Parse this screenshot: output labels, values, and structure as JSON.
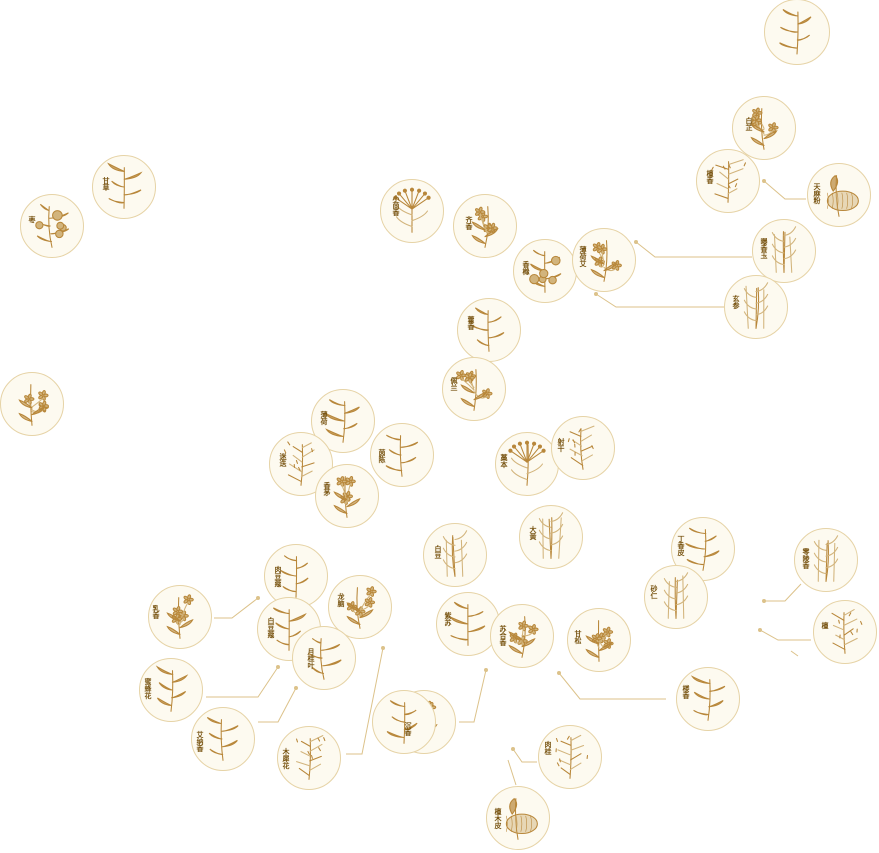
{
  "theme": {
    "line": "#dcc28a",
    "ink": "#b8873a",
    "ink_light": "#d2b47c",
    "fill": "#fdfaf0",
    "border": "#e6d3a6",
    "label": "#7a5614"
  },
  "herbs": [
    {
      "id": "h1",
      "label": "",
      "icon": "leafy-herb-icon"
    },
    {
      "id": "h2",
      "label": "白芷",
      "icon": "flowering-herb-icon"
    },
    {
      "id": "h3",
      "label": "檀香",
      "icon": "branch-herb-icon"
    },
    {
      "id": "h4",
      "label": "天麻粉",
      "icon": "root-tuber-icon"
    },
    {
      "id": "h5",
      "label": "甘草",
      "icon": "leafy-herb-icon"
    },
    {
      "id": "h6",
      "label": "枣",
      "icon": "fruit-branch-icon"
    },
    {
      "id": "h7",
      "label": "小茴香",
      "icon": "umbel-herb-icon"
    },
    {
      "id": "h8",
      "label": "齐香",
      "icon": "flowering-herb-icon"
    },
    {
      "id": "h9",
      "label": "香橼",
      "icon": "fruit-branch-icon"
    },
    {
      "id": "h10",
      "label": "薄荷艾",
      "icon": "flowering-herb-icon"
    },
    {
      "id": "h11",
      "label": "曝香玉",
      "icon": "stalk-herb-icon"
    },
    {
      "id": "h12",
      "label": "玄参",
      "icon": "stalk-herb-icon"
    },
    {
      "id": "h13",
      "label": "藿香",
      "icon": "leafy-herb-icon"
    },
    {
      "id": "h14",
      "label": "佩兰",
      "icon": "flowering-herb-icon"
    },
    {
      "id": "h15",
      "label": "",
      "icon": "flowering-herb-icon"
    },
    {
      "id": "h16",
      "label": "薄荷",
      "icon": "leafy-herb-icon"
    },
    {
      "id": "h17",
      "label": "茵陈",
      "icon": "leafy-herb-icon"
    },
    {
      "id": "h18",
      "label": "迷迭",
      "icon": "branch-herb-icon"
    },
    {
      "id": "h19",
      "label": "香茅",
      "icon": "flowering-herb-icon"
    },
    {
      "id": "h20",
      "label": "藁本",
      "icon": "umbel-herb-icon"
    },
    {
      "id": "h21",
      "label": "射干",
      "icon": "branch-herb-icon"
    },
    {
      "id": "h22",
      "label": "大黄",
      "icon": "stalk-herb-icon"
    },
    {
      "id": "h23",
      "label": "白豆",
      "icon": "stalk-herb-icon"
    },
    {
      "id": "h24",
      "label": "肉豆蔻",
      "icon": "leafy-herb-icon"
    },
    {
      "id": "h25",
      "label": "龙脑",
      "icon": "flowering-herb-icon"
    },
    {
      "id": "h26",
      "label": "白豆蔻",
      "icon": "leafy-herb-icon"
    },
    {
      "id": "h27",
      "label": "月桂叶",
      "icon": "leafy-herb-icon"
    },
    {
      "id": "h28",
      "label": "紫苏",
      "icon": "leafy-herb-icon"
    },
    {
      "id": "h29",
      "label": "苏合香",
      "icon": "flowering-herb-icon"
    },
    {
      "id": "h30",
      "label": "甘松",
      "icon": "flowering-herb-icon"
    },
    {
      "id": "h31",
      "label": "丁香皮",
      "icon": "leafy-herb-icon"
    },
    {
      "id": "h32",
      "label": "砂仁",
      "icon": "stalk-herb-icon"
    },
    {
      "id": "h33",
      "label": "零陵香",
      "icon": "stalk-herb-icon"
    },
    {
      "id": "h34",
      "label": "檀",
      "icon": "branch-herb-icon"
    },
    {
      "id": "h35",
      "label": "楼香",
      "icon": "leafy-herb-icon"
    },
    {
      "id": "h36",
      "label": "乳香",
      "icon": "flowering-herb-icon"
    },
    {
      "id": "h37",
      "label": "蜜蜂花",
      "icon": "leafy-herb-icon"
    },
    {
      "id": "h38",
      "label": "艾纳香",
      "icon": "leafy-herb-icon"
    },
    {
      "id": "h39",
      "label": "木犀花",
      "icon": "branch-herb-icon"
    },
    {
      "id": "h40",
      "label": "茯苓",
      "icon": "flowering-herb-icon"
    },
    {
      "id": "h41",
      "label": "肉桂",
      "icon": "branch-herb-icon"
    },
    {
      "id": "h42",
      "label": "檀木皮",
      "icon": "root-tuber-icon"
    },
    {
      "id": "h43",
      "label": "沉香",
      "icon": "leafy-herb-icon"
    }
  ]
}
